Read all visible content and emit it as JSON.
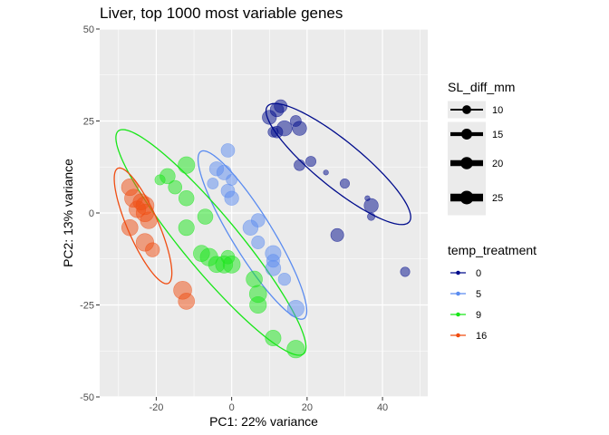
{
  "chart_data": {
    "type": "scatter",
    "title": "Liver, top 1000 most variable genes",
    "xlabel": "PC1: 22% variance",
    "ylabel": "PC2: 13% variance",
    "xlim": [
      -35,
      52
    ],
    "ylim": [
      -50,
      50
    ],
    "xticks": [
      -20,
      0,
      20,
      40
    ],
    "xtick_labels": [
      "-20",
      "0",
      "20",
      "40"
    ],
    "yticks": [
      -50,
      -25,
      0,
      25,
      50
    ],
    "ytick_labels": [
      "-50",
      "-25",
      "0",
      "25",
      "50"
    ],
    "grid": true,
    "legend_position": "right",
    "size_legend": {
      "title": "SL_diff_mm",
      "entries": [
        {
          "label": "10",
          "value": 10
        },
        {
          "label": "15",
          "value": 15
        },
        {
          "label": "20",
          "value": 20
        },
        {
          "label": "25",
          "value": 25
        }
      ],
      "size_range": [
        2,
        25
      ]
    },
    "color_legend": {
      "title": "temp_treatment",
      "entries": [
        {
          "label": "0",
          "color": "#000c8c"
        },
        {
          "label": "5",
          "color": "#5b8cf0"
        },
        {
          "label": "9",
          "color": "#19e619"
        },
        {
          "label": "16",
          "color": "#f04d12"
        }
      ]
    },
    "series": [
      {
        "name": "0",
        "color": "#000c8c",
        "points": [
          {
            "x": 10,
            "y": 26,
            "s": 17
          },
          {
            "x": 12,
            "y": 28,
            "s": 16
          },
          {
            "x": 13,
            "y": 29,
            "s": 15
          },
          {
            "x": 17,
            "y": 25,
            "s": 12
          },
          {
            "x": 11,
            "y": 22,
            "s": 11
          },
          {
            "x": 12,
            "y": 22,
            "s": 13
          },
          {
            "x": 14,
            "y": 23,
            "s": 19
          },
          {
            "x": 18,
            "y": 23,
            "s": 17
          },
          {
            "x": 18,
            "y": 13,
            "s": 12
          },
          {
            "x": 21,
            "y": 14,
            "s": 11
          },
          {
            "x": 25,
            "y": 11,
            "s": 6
          },
          {
            "x": 30,
            "y": 8,
            "s": 10
          },
          {
            "x": 36,
            "y": 4,
            "s": 6
          },
          {
            "x": 37,
            "y": 2,
            "s": 17
          },
          {
            "x": 37,
            "y": -1,
            "s": 8
          },
          {
            "x": 28,
            "y": -6,
            "s": 15
          },
          {
            "x": 46,
            "y": -16,
            "s": 10
          }
        ]
      },
      {
        "name": "5",
        "color": "#5b8cf0",
        "points": [
          {
            "x": -1,
            "y": 17,
            "s": 16
          },
          {
            "x": -4,
            "y": 12,
            "s": 17
          },
          {
            "x": -2,
            "y": 11,
            "s": 18
          },
          {
            "x": 0,
            "y": 9,
            "s": 12
          },
          {
            "x": -5,
            "y": 8,
            "s": 12
          },
          {
            "x": -1,
            "y": 6,
            "s": 16
          },
          {
            "x": 0,
            "y": 4,
            "s": 17
          },
          {
            "x": 5,
            "y": -4,
            "s": 19
          },
          {
            "x": 7,
            "y": -2,
            "s": 16
          },
          {
            "x": 7,
            "y": -8,
            "s": 15
          },
          {
            "x": 11,
            "y": -11,
            "s": 20
          },
          {
            "x": 11,
            "y": -13,
            "s": 15
          },
          {
            "x": 11,
            "y": -15,
            "s": 19
          },
          {
            "x": 14,
            "y": -18,
            "s": 14
          },
          {
            "x": 17,
            "y": -26,
            "s": 22
          }
        ]
      },
      {
        "name": "9",
        "color": "#19e619",
        "points": [
          {
            "x": -12,
            "y": 13,
            "s": 22
          },
          {
            "x": -19,
            "y": 9,
            "s": 11
          },
          {
            "x": -17,
            "y": 10,
            "s": 19
          },
          {
            "x": -15,
            "y": 7,
            "s": 16
          },
          {
            "x": -12,
            "y": 4,
            "s": 19
          },
          {
            "x": -7,
            "y": -1,
            "s": 19
          },
          {
            "x": -12,
            "y": -4,
            "s": 20
          },
          {
            "x": -8,
            "y": -11,
            "s": 21
          },
          {
            "x": -6,
            "y": -12,
            "s": 24
          },
          {
            "x": -4,
            "y": -14,
            "s": 21
          },
          {
            "x": -2,
            "y": -14,
            "s": 23
          },
          {
            "x": -1,
            "y": -12,
            "s": 16
          },
          {
            "x": 0,
            "y": -14,
            "s": 23
          },
          {
            "x": 6,
            "y": -18,
            "s": 21
          },
          {
            "x": 7,
            "y": -22,
            "s": 23
          },
          {
            "x": 7,
            "y": -25,
            "s": 22
          },
          {
            "x": 11,
            "y": -34,
            "s": 20
          },
          {
            "x": 17,
            "y": -37,
            "s": 24
          }
        ]
      },
      {
        "name": "16",
        "color": "#f04d12",
        "points": [
          {
            "x": -27,
            "y": 7,
            "s": 22
          },
          {
            "x": -26,
            "y": 4,
            "s": 25
          },
          {
            "x": -24,
            "y": 3,
            "s": 21
          },
          {
            "x": -23,
            "y": 2,
            "s": 25
          },
          {
            "x": -25,
            "y": 1,
            "s": 22
          },
          {
            "x": -23,
            "y": 0,
            "s": 24
          },
          {
            "x": -22,
            "y": -2,
            "s": 22
          },
          {
            "x": -27,
            "y": -4,
            "s": 21
          },
          {
            "x": -23,
            "y": -8,
            "s": 24
          },
          {
            "x": -21,
            "y": -10,
            "s": 17
          },
          {
            "x": -13,
            "y": -21,
            "s": 25
          },
          {
            "x": -12,
            "y": -24,
            "s": 21
          }
        ]
      }
    ],
    "ellipses": [
      {
        "series": "0",
        "color": "#000c8c",
        "center": [
          28.3,
          13.3
        ],
        "semi_axes": [
          24.5,
          6.2
        ],
        "angle": -40
      },
      {
        "series": "5",
        "color": "#5b8cf0",
        "center": [
          5.5,
          -6.0
        ],
        "semi_axes": [
          26.5,
          5.4
        ],
        "angle": -59
      },
      {
        "series": "9",
        "color": "#19e619",
        "center": [
          -5.5,
          -8.0
        ],
        "semi_axes": [
          39.0,
          7.4
        ],
        "angle": -51
      },
      {
        "series": "16",
        "color": "#f04d12",
        "center": [
          -23.5,
          -3.5
        ],
        "semi_axes": [
          17.0,
          4.1
        ],
        "angle": -67
      }
    ]
  }
}
